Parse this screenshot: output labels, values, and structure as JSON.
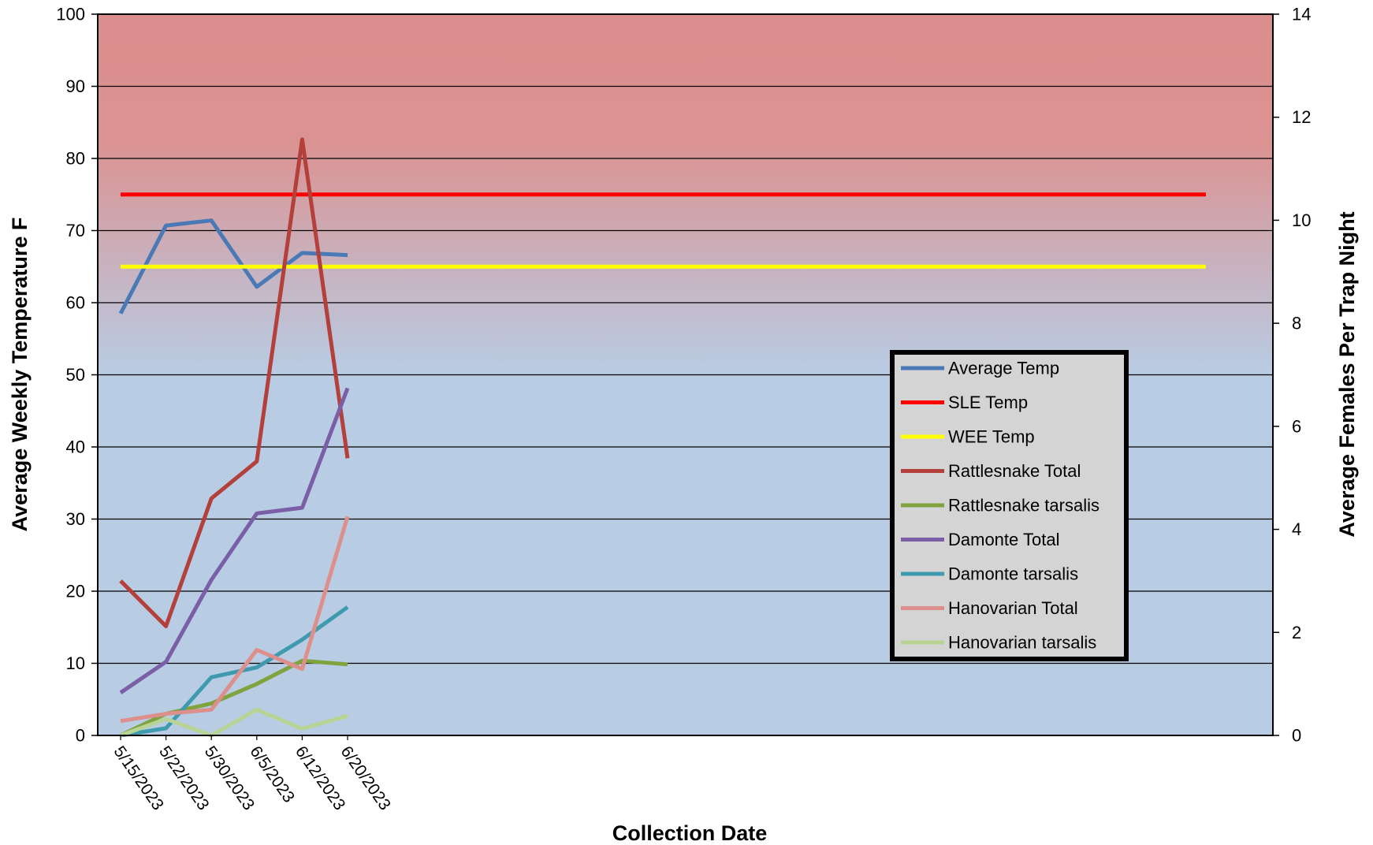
{
  "chart_data": {
    "type": "line",
    "title": "",
    "xlabel": "Collection Date",
    "ylabel_left": "Average Weekly Temperature F",
    "ylabel_right": "Average Females Per Trap Night",
    "x": [
      "5/15/2023",
      "5/22/2023",
      "5/30/2023",
      "6/5/2023",
      "6/12/2023",
      "6/20/2023"
    ],
    "ylim_left": [
      0,
      100
    ],
    "ylim_right": [
      0,
      14
    ],
    "yticks_left": [
      "0",
      "10",
      "20",
      "30",
      "40",
      "50",
      "60",
      "70",
      "80",
      "90",
      "100"
    ],
    "yticks_right": [
      "0",
      "2",
      "4",
      "6",
      "8",
      "10",
      "12",
      "14"
    ],
    "grid": true,
    "legend_position": "right",
    "series": [
      {
        "name": "Average Temp",
        "axis": "left",
        "color": "#4a7ab5",
        "values": [
          58.5,
          70.7,
          71.4,
          62.2,
          66.9,
          66.6
        ]
      },
      {
        "name": "SLE Temp",
        "axis": "left",
        "color": "#ff0000",
        "constant": 75
      },
      {
        "name": "WEE Temp",
        "axis": "left",
        "color": "#ffff00",
        "constant": 65
      },
      {
        "name": "Rattlesnake Total",
        "axis": "right",
        "color": "#b3403b",
        "values": [
          3.0,
          2.12,
          4.6,
          5.32,
          11.57,
          5.38
        ]
      },
      {
        "name": "Rattlesnake tarsalis",
        "axis": "right",
        "color": "#7fa33d",
        "values": [
          0.0,
          0.42,
          0.62,
          1.0,
          1.45,
          1.38
        ]
      },
      {
        "name": "Damonte Total",
        "axis": "right",
        "color": "#7a5ea6",
        "values": [
          0.83,
          1.43,
          3.02,
          4.31,
          4.42,
          6.74
        ]
      },
      {
        "name": "Damonte tarsalis",
        "axis": "right",
        "color": "#3f9aae",
        "values": [
          0.0,
          0.14,
          1.13,
          1.32,
          1.86,
          2.49
        ]
      },
      {
        "name": "Hanovarian Total",
        "axis": "right",
        "color": "#dd8f8c",
        "values": [
          0.28,
          0.42,
          0.5,
          1.66,
          1.29,
          4.25
        ]
      },
      {
        "name": "Hanovarian tarsalis",
        "axis": "right",
        "color": "#b8d494",
        "values": [
          0.0,
          0.32,
          0.0,
          0.5,
          0.13,
          0.38
        ]
      }
    ],
    "colors": {
      "background_top": "#db8e8d",
      "background_mid": "#b8b8cc",
      "background_bottom": "#b8cce4",
      "legend_bg": "#d4d4d4",
      "grid": "#000000"
    }
  }
}
